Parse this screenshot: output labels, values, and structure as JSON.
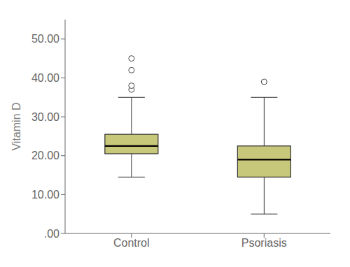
{
  "chart_data": {
    "type": "box",
    "categories": [
      "Control",
      "Psoriasis"
    ],
    "whisker_low": [
      14.5,
      5.0
    ],
    "q1": [
      20.5,
      14.5
    ],
    "median": [
      22.5,
      19.0
    ],
    "q3": [
      25.5,
      22.5
    ],
    "whisker_high": [
      35.0,
      35.0
    ],
    "outliers": [
      [
        37.0,
        38.0,
        42.0,
        45.0
      ],
      [
        39.0
      ]
    ],
    "ylabel": "Vitamin D",
    "ylim": [
      0,
      55
    ],
    "yticks": [
      {
        "value": 0,
        "label": ".00"
      },
      {
        "value": 10,
        "label": "10.00"
      },
      {
        "value": 20,
        "label": "20.00"
      },
      {
        "value": 30,
        "label": "30.00"
      },
      {
        "value": 40,
        "label": "40.00"
      },
      {
        "value": 50,
        "label": "50.00"
      }
    ],
    "color": "#c8c87a",
    "grid": false
  }
}
